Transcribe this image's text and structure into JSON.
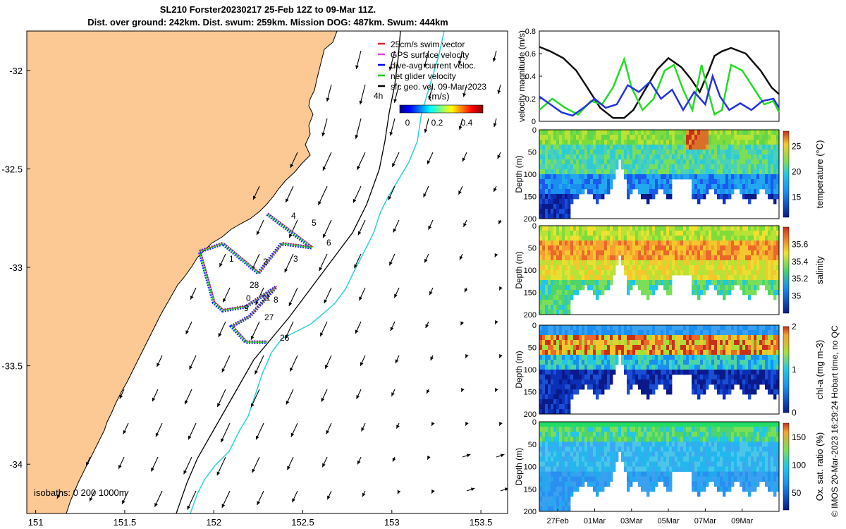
{
  "title_line1": "SL210 Forster20230217 25-Feb 12Z to 09-Mar 11Z.",
  "title_line2": "Dist. over ground: 242km. Dist. swum: 259km. Mission DOG: 487km. Swum: 444km",
  "map": {
    "x_ticks": [
      "151",
      "151.5",
      "152",
      "152.5",
      "153",
      "153.5"
    ],
    "y_ticks": [
      "-32",
      "-32.5",
      "-33",
      "-33.5",
      "-34"
    ],
    "legend": [
      {
        "label": "25cm/s swim vector",
        "color": "#d62728"
      },
      {
        "label": "GPS surface velocity",
        "color": "#e040e0"
      },
      {
        "label": "dive-avg current veloc.",
        "color": "#0000ff"
      },
      {
        "label": "net glider velocity",
        "color": "#00cc00"
      },
      {
        "label": "sfc geo. vel. 09-Mar-2023",
        "color": "#000000"
      }
    ],
    "scale_label": "4h",
    "colorbar_title": "(m/s)",
    "colorbar_ticks": [
      "0",
      "0.2",
      "0.4"
    ],
    "isobaths_label": "isobaths: 0   200  1000m",
    "day_labels": [
      "1",
      "2",
      "3",
      "4",
      "5",
      "6",
      "28",
      "0",
      "11",
      "8",
      "9",
      "27",
      "26"
    ]
  },
  "velocity_panel": {
    "ylabel": "velocity magnitude (m/s)",
    "y_ticks": [
      "0",
      "0.2",
      "0.4",
      "0.6",
      "0.8"
    ]
  },
  "depth_panels": [
    {
      "name": "temperature",
      "cb_label": "temperature (°C)",
      "cb_ticks": [
        "15",
        "20",
        "25"
      ]
    },
    {
      "name": "salinity",
      "cb_label": "salinity",
      "cb_ticks": [
        "35",
        "35.2",
        "35.4",
        "35.6"
      ]
    },
    {
      "name": "chla",
      "cb_label": "chl-a (mg m-3)",
      "cb_ticks": [
        "0",
        "1",
        "2"
      ]
    },
    {
      "name": "oxygen",
      "cb_label": "Ox. sat. ratio (%)",
      "cb_ticks": [
        "50",
        "100",
        "150"
      ]
    }
  ],
  "depth_ylabel": "Depth (m)",
  "depth_ticks": [
    "0",
    "50",
    "100",
    "150",
    "200"
  ],
  "time_ticks": [
    "27Feb",
    "01Mar",
    "03Mar",
    "05Mar",
    "07Mar",
    "09Mar"
  ],
  "credit": "© IMOS 20-Mar-2023 16:29:24 Hobart time, no QC",
  "chart_data": [
    {
      "type": "map",
      "title": "SL210 Forster20230217 25-Feb 12Z to 09-Mar 11Z.",
      "xlim": [
        150.95,
        153.65
      ],
      "ylim": [
        -34.25,
        -31.8
      ],
      "track_waypoints_lonlat": [
        [
          152.3,
          -32.73
        ],
        [
          152.55,
          -32.9
        ],
        [
          152.38,
          -32.88
        ],
        [
          152.25,
          -33.03
        ],
        [
          152.05,
          -32.88
        ],
        [
          151.92,
          -32.92
        ],
        [
          152.0,
          -33.18
        ],
        [
          152.05,
          -33.22
        ],
        [
          152.18,
          -33.2
        ],
        [
          152.35,
          -33.1
        ],
        [
          152.2,
          -33.25
        ],
        [
          152.1,
          -33.3
        ],
        [
          152.18,
          -33.38
        ],
        [
          152.3,
          -33.38
        ]
      ]
    },
    {
      "type": "line",
      "title": "velocity magnitude",
      "ylabel": "velocity magnitude (m/s)",
      "ylim": [
        0,
        0.8
      ],
      "x_days_from_26Feb": [
        0,
        13
      ],
      "series": [
        {
          "name": "surface geostrophic velocity",
          "color": "#111111",
          "x": [
            0,
            0.6,
            1.3,
            2,
            2.6,
            3.3,
            4,
            4.6,
            5.1,
            5.7,
            6.4,
            7,
            7.7,
            8.2,
            8.7,
            9.2,
            9.5,
            9.9,
            10.4,
            11.2,
            12,
            12.6,
            13
          ],
          "y": [
            0.66,
            0.62,
            0.56,
            0.45,
            0.3,
            0.12,
            0.03,
            0.03,
            0.1,
            0.27,
            0.46,
            0.56,
            0.48,
            0.38,
            0.26,
            0.45,
            0.58,
            0.62,
            0.65,
            0.6,
            0.45,
            0.3,
            0.24
          ]
        },
        {
          "name": "net glider velocity",
          "color": "#22dd22",
          "x": [
            0,
            0.7,
            1.4,
            2.1,
            2.8,
            3.4,
            4,
            4.6,
            5,
            5.6,
            6.2,
            6.8,
            7.3,
            7.8,
            8.3,
            8.8,
            9.1,
            9.5,
            9.9,
            10.4,
            11,
            11.6,
            12.2,
            12.7,
            13
          ],
          "y": [
            0.1,
            0.2,
            0.12,
            0.06,
            0.18,
            0.15,
            0.3,
            0.55,
            0.3,
            0.1,
            0.2,
            0.45,
            0.5,
            0.28,
            0.1,
            0.5,
            0.3,
            0.06,
            0.1,
            0.5,
            0.45,
            0.3,
            0.15,
            0.18,
            0.08
          ]
        },
        {
          "name": "dive-avg current velocity",
          "color": "#2233dd",
          "x": [
            0,
            0.6,
            1.2,
            1.8,
            2.4,
            3,
            3.6,
            4.2,
            4.8,
            5.4,
            6,
            6.6,
            7.2,
            7.8,
            8.4,
            9,
            9.4,
            9.8,
            10.3,
            10.9,
            11.5,
            12.1,
            12.7,
            13
          ],
          "y": [
            0.22,
            0.15,
            0.08,
            0.05,
            0.12,
            0.2,
            0.12,
            0.15,
            0.32,
            0.26,
            0.35,
            0.2,
            0.28,
            0.1,
            0.26,
            0.15,
            0.4,
            0.22,
            0.1,
            0.16,
            0.1,
            0.18,
            0.2,
            0.12
          ]
        }
      ]
    },
    {
      "type": "heatmap",
      "title": "temperature section",
      "ylabel": "Depth (m)",
      "ylim": [
        200,
        0
      ],
      "clim": [
        11,
        28
      ],
      "cb_label": "temperature (°C)"
    },
    {
      "type": "heatmap",
      "title": "salinity section",
      "ylabel": "Depth (m)",
      "ylim": [
        200,
        0
      ],
      "clim": [
        34.8,
        35.8
      ],
      "cb_label": "salinity"
    },
    {
      "type": "heatmap",
      "title": "chlorophyll-a section",
      "ylabel": "Depth (m)",
      "ylim": [
        200,
        0
      ],
      "clim": [
        0,
        2
      ],
      "cb_label": "chl-a (mg m-3)"
    },
    {
      "type": "heatmap",
      "title": "oxygen saturation section",
      "ylabel": "Depth (m)",
      "ylim": [
        200,
        0
      ],
      "clim": [
        20,
        175
      ],
      "cb_label": "Ox. sat. ratio (%)"
    }
  ]
}
